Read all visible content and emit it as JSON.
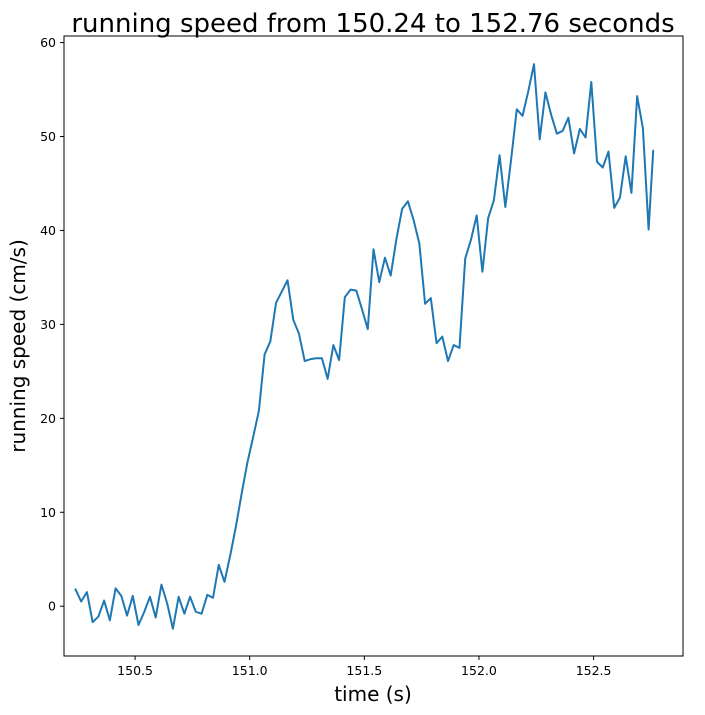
{
  "chart_data": {
    "type": "line",
    "title": "running speed from 150.24 to 152.76 seconds",
    "xlabel": "time (s)",
    "ylabel": "running speed (cm/s)",
    "xlim": [
      150.19,
      152.89
    ],
    "ylim": [
      -5.3,
      60.7
    ],
    "xticks": [
      150.5,
      151.0,
      151.5,
      152.0,
      152.5
    ],
    "xtick_labels": [
      "150.5",
      "151.0",
      "151.5",
      "152.0",
      "152.5"
    ],
    "yticks": [
      0,
      10,
      20,
      30,
      40,
      50,
      60
    ],
    "ytick_labels": [
      "0",
      "10",
      "20",
      "30",
      "40",
      "50",
      "60"
    ],
    "grid": false,
    "series": [
      {
        "color": "#1f77b4",
        "x": [
          150.24,
          150.265,
          150.29,
          150.315,
          150.34,
          150.365,
          150.39,
          150.415,
          150.44,
          150.465,
          150.49,
          150.515,
          150.54,
          150.565,
          150.59,
          150.615,
          150.64,
          150.665,
          150.69,
          150.715,
          150.74,
          150.765,
          150.79,
          150.815,
          150.84,
          150.865,
          150.89,
          150.915,
          150.94,
          150.965,
          150.99,
          151.015,
          151.04,
          151.065,
          151.09,
          151.115,
          151.14,
          151.165,
          151.19,
          151.215,
          151.24,
          151.265,
          151.29,
          151.315,
          151.34,
          151.365,
          151.39,
          151.415,
          151.44,
          151.465,
          151.49,
          151.515,
          151.54,
          151.565,
          151.59,
          151.615,
          151.64,
          151.665,
          151.69,
          151.715,
          151.74,
          151.765,
          151.79,
          151.815,
          151.84,
          151.865,
          151.89,
          151.915,
          151.94,
          151.965,
          151.99,
          152.015,
          152.04,
          152.065,
          152.09,
          152.115,
          152.14,
          152.165,
          152.19,
          152.215,
          152.24,
          152.265,
          152.29,
          152.315,
          152.34,
          152.365,
          152.39,
          152.415,
          152.44,
          152.465,
          152.49,
          152.515,
          152.54,
          152.565,
          152.59,
          152.615,
          152.64,
          152.665,
          152.69,
          152.715,
          152.74,
          152.76
        ],
        "y": [
          1.8,
          0.5,
          1.5,
          -1.7,
          -1.1,
          0.6,
          -1.5,
          1.9,
          1.1,
          -1.0,
          1.1,
          -2.0,
          -0.6,
          1.0,
          -1.2,
          2.3,
          0.3,
          -2.4,
          1.0,
          -0.8,
          1.0,
          -0.6,
          -0.8,
          1.2,
          0.9,
          4.4,
          2.6,
          5.4,
          8.5,
          12.0,
          15.3,
          18.0,
          20.8,
          26.8,
          28.2,
          32.3,
          33.5,
          34.7,
          30.5,
          29.0,
          26.1,
          26.3,
          26.4,
          26.4,
          24.2,
          27.8,
          26.2,
          32.9,
          33.7,
          33.6,
          31.6,
          29.5,
          38.0,
          34.5,
          37.1,
          35.2,
          39.1,
          42.3,
          43.1,
          41.1,
          38.6,
          32.2,
          32.8,
          28.0,
          28.7,
          26.1,
          27.8,
          27.5,
          37.0,
          39.0,
          41.6,
          35.6,
          41.3,
          43.2,
          48.0,
          42.5,
          47.5,
          52.9,
          52.2,
          54.8,
          57.7,
          49.7,
          54.7,
          52.3,
          50.3,
          50.6,
          52.0,
          48.2,
          50.8,
          49.9,
          55.8,
          47.3,
          46.7,
          48.4,
          42.4,
          43.5,
          47.9,
          44.0,
          54.3,
          50.9,
          40.1,
          48.5
        ]
      }
    ]
  }
}
